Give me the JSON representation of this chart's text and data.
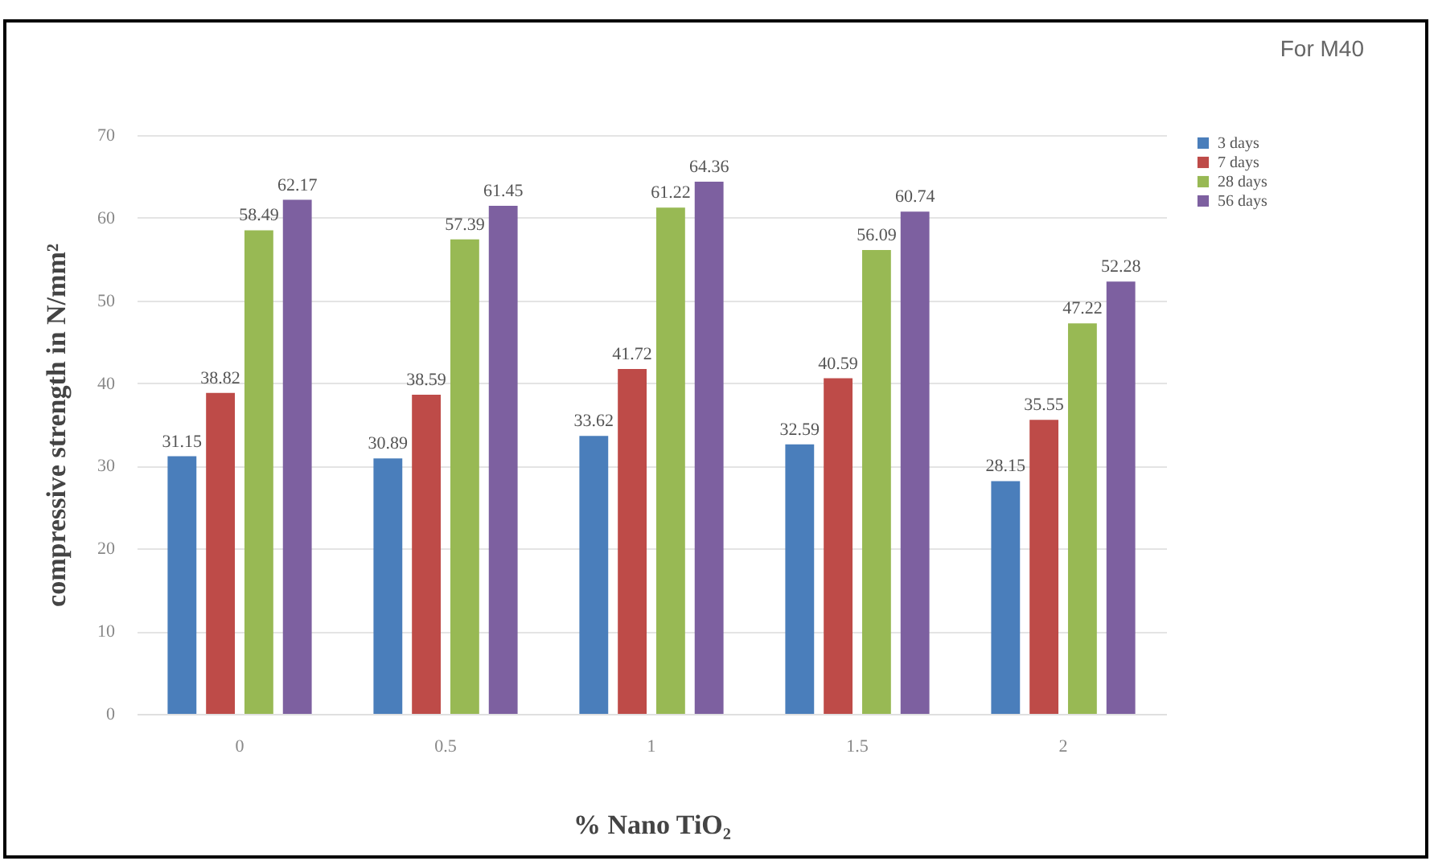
{
  "chart_data": {
    "type": "bar",
    "title": "For M40",
    "xlabel": "% Nano TiO₂",
    "ylabel": "compressive strength in N/mm²",
    "categories": [
      "0",
      "0.5",
      "1",
      "1.5",
      "2"
    ],
    "series": [
      {
        "name": "3 days",
        "color": "#4a7ebb",
        "values": [
          31.15,
          30.89,
          33.62,
          32.59,
          28.15
        ]
      },
      {
        "name": "7 days",
        "color": "#be4b48",
        "values": [
          38.82,
          38.59,
          41.72,
          40.59,
          35.55
        ]
      },
      {
        "name": "28 days",
        "color": "#98b954",
        "values": [
          58.49,
          57.39,
          61.22,
          56.09,
          47.22
        ]
      },
      {
        "name": "56 days",
        "color": "#7d60a0",
        "values": [
          62.17,
          61.45,
          64.36,
          60.74,
          52.28
        ]
      }
    ],
    "ylim": [
      0,
      70
    ],
    "yticks": [
      0,
      10,
      20,
      30,
      40,
      50,
      60,
      70
    ],
    "grid": "y",
    "legend": "right",
    "data_labels": true
  }
}
